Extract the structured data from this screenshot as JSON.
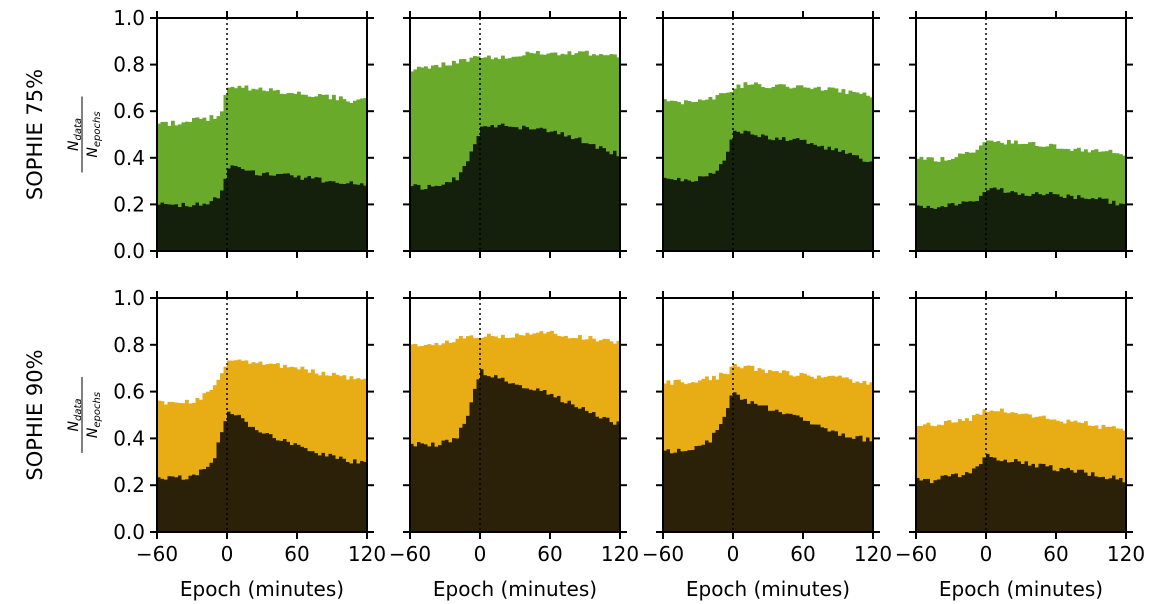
{
  "chart_data": {
    "type": "bar",
    "layout": {
      "rows": 2,
      "cols": 4
    },
    "xlabel": "Epoch (minutes)",
    "xlim": [
      -60,
      120
    ],
    "ylim": [
      0,
      1.0
    ],
    "xticks": [
      -60,
      0,
      60,
      120
    ],
    "xtick_labels": [
      "−60",
      "0",
      "60",
      "120"
    ],
    "yticks": [
      0,
      0.2,
      0.4,
      0.6,
      0.8,
      1.0
    ],
    "ytick_labels": [
      "0.0",
      "0.2",
      "0.4",
      "0.6",
      "0.8",
      "1.0"
    ],
    "ylabel": {
      "numerator": "N",
      "numerator_sub": "data",
      "denominator": "N",
      "denominator_sub": "epochs"
    },
    "epoch_marker": 0,
    "bin_minutes": 3,
    "rows": [
      {
        "label": "SOPHIE 75%",
        "colors": {
          "total": "#6aaa2a",
          "inner": "#14200b"
        },
        "panels": [
          {
            "total_knots": [
              [
                -60,
                0.54
              ],
              [
                -45,
                0.55
              ],
              [
                -30,
                0.56
              ],
              [
                -15,
                0.57
              ],
              [
                -6,
                0.58
              ],
              [
                -3,
                0.62
              ],
              [
                0,
                0.7
              ],
              [
                15,
                0.7
              ],
              [
                30,
                0.69
              ],
              [
                60,
                0.68
              ],
              [
                90,
                0.66
              ],
              [
                110,
                0.64
              ],
              [
                120,
                0.65
              ]
            ],
            "inner_knots": [
              [
                -60,
                0.21
              ],
              [
                -45,
                0.19
              ],
              [
                -30,
                0.2
              ],
              [
                -15,
                0.21
              ],
              [
                -6,
                0.23
              ],
              [
                -3,
                0.28
              ],
              [
                0,
                0.36
              ],
              [
                6,
                0.38
              ],
              [
                15,
                0.34
              ],
              [
                30,
                0.33
              ],
              [
                60,
                0.32
              ],
              [
                90,
                0.3
              ],
              [
                120,
                0.28
              ]
            ]
          },
          {
            "total_knots": [
              [
                -60,
                0.77
              ],
              [
                -45,
                0.79
              ],
              [
                -30,
                0.8
              ],
              [
                -15,
                0.82
              ],
              [
                0,
                0.83
              ],
              [
                30,
                0.84
              ],
              [
                60,
                0.85
              ],
              [
                90,
                0.85
              ],
              [
                120,
                0.83
              ]
            ],
            "inner_knots": [
              [
                -60,
                0.28
              ],
              [
                -45,
                0.27
              ],
              [
                -30,
                0.29
              ],
              [
                -20,
                0.31
              ],
              [
                -10,
                0.4
              ],
              [
                -3,
                0.48
              ],
              [
                0,
                0.53
              ],
              [
                15,
                0.54
              ],
              [
                30,
                0.53
              ],
              [
                60,
                0.52
              ],
              [
                90,
                0.47
              ],
              [
                120,
                0.41
              ]
            ]
          },
          {
            "total_knots": [
              [
                -60,
                0.66
              ],
              [
                -45,
                0.64
              ],
              [
                -30,
                0.65
              ],
              [
                -15,
                0.66
              ],
              [
                -5,
                0.68
              ],
              [
                0,
                0.7
              ],
              [
                15,
                0.72
              ],
              [
                30,
                0.71
              ],
              [
                60,
                0.7
              ],
              [
                90,
                0.69
              ],
              [
                120,
                0.67
              ]
            ],
            "inner_knots": [
              [
                -60,
                0.32
              ],
              [
                -45,
                0.3
              ],
              [
                -30,
                0.31
              ],
              [
                -15,
                0.34
              ],
              [
                -8,
                0.38
              ],
              [
                -3,
                0.45
              ],
              [
                0,
                0.52
              ],
              [
                15,
                0.5
              ],
              [
                30,
                0.49
              ],
              [
                60,
                0.47
              ],
              [
                90,
                0.43
              ],
              [
                120,
                0.38
              ]
            ]
          },
          {
            "total_knots": [
              [
                -60,
                0.4
              ],
              [
                -45,
                0.39
              ],
              [
                -30,
                0.4
              ],
              [
                -15,
                0.42
              ],
              [
                -6,
                0.44
              ],
              [
                0,
                0.48
              ],
              [
                15,
                0.47
              ],
              [
                30,
                0.46
              ],
              [
                60,
                0.45
              ],
              [
                90,
                0.43
              ],
              [
                120,
                0.42
              ]
            ],
            "inner_knots": [
              [
                -60,
                0.2
              ],
              [
                -45,
                0.19
              ],
              [
                -30,
                0.2
              ],
              [
                -15,
                0.21
              ],
              [
                -6,
                0.23
              ],
              [
                0,
                0.27
              ],
              [
                15,
                0.26
              ],
              [
                30,
                0.25
              ],
              [
                60,
                0.24
              ],
              [
                90,
                0.23
              ],
              [
                120,
                0.2
              ]
            ]
          }
        ]
      },
      {
        "label": "SOPHIE 90%",
        "colors": {
          "total": "#e8ac15",
          "inner": "#2a2108"
        },
        "panels": [
          {
            "total_knots": [
              [
                -60,
                0.55
              ],
              [
                -45,
                0.56
              ],
              [
                -30,
                0.56
              ],
              [
                -20,
                0.58
              ],
              [
                -12,
                0.62
              ],
              [
                -6,
                0.67
              ],
              [
                0,
                0.73
              ],
              [
                15,
                0.73
              ],
              [
                30,
                0.72
              ],
              [
                60,
                0.7
              ],
              [
                90,
                0.67
              ],
              [
                120,
                0.65
              ]
            ],
            "inner_knots": [
              [
                -60,
                0.24
              ],
              [
                -45,
                0.23
              ],
              [
                -30,
                0.24
              ],
              [
                -20,
                0.26
              ],
              [
                -12,
                0.3
              ],
              [
                -6,
                0.4
              ],
              [
                0,
                0.51
              ],
              [
                8,
                0.5
              ],
              [
                20,
                0.45
              ],
              [
                30,
                0.42
              ],
              [
                60,
                0.37
              ],
              [
                90,
                0.32
              ],
              [
                120,
                0.29
              ]
            ]
          },
          {
            "total_knots": [
              [
                -60,
                0.79
              ],
              [
                -45,
                0.8
              ],
              [
                -30,
                0.81
              ],
              [
                -15,
                0.83
              ],
              [
                0,
                0.84
              ],
              [
                30,
                0.84
              ],
              [
                60,
                0.85
              ],
              [
                90,
                0.83
              ],
              [
                120,
                0.81
              ]
            ],
            "inner_knots": [
              [
                -60,
                0.38
              ],
              [
                -45,
                0.37
              ],
              [
                -30,
                0.38
              ],
              [
                -20,
                0.4
              ],
              [
                -12,
                0.48
              ],
              [
                -5,
                0.6
              ],
              [
                0,
                0.69
              ],
              [
                15,
                0.66
              ],
              [
                30,
                0.63
              ],
              [
                60,
                0.59
              ],
              [
                90,
                0.52
              ],
              [
                120,
                0.46
              ]
            ]
          },
          {
            "total_knots": [
              [
                -60,
                0.64
              ],
              [
                -45,
                0.64
              ],
              [
                -30,
                0.65
              ],
              [
                -15,
                0.66
              ],
              [
                -5,
                0.68
              ],
              [
                0,
                0.71
              ],
              [
                15,
                0.7
              ],
              [
                30,
                0.69
              ],
              [
                60,
                0.67
              ],
              [
                90,
                0.66
              ],
              [
                120,
                0.63
              ]
            ],
            "inner_knots": [
              [
                -60,
                0.34
              ],
              [
                -45,
                0.35
              ],
              [
                -30,
                0.36
              ],
              [
                -20,
                0.39
              ],
              [
                -10,
                0.46
              ],
              [
                -4,
                0.54
              ],
              [
                0,
                0.6
              ],
              [
                15,
                0.55
              ],
              [
                30,
                0.53
              ],
              [
                60,
                0.48
              ],
              [
                90,
                0.42
              ],
              [
                120,
                0.39
              ]
            ]
          },
          {
            "total_knots": [
              [
                -60,
                0.45
              ],
              [
                -45,
                0.46
              ],
              [
                -30,
                0.47
              ],
              [
                -15,
                0.48
              ],
              [
                -5,
                0.5
              ],
              [
                0,
                0.52
              ],
              [
                15,
                0.52
              ],
              [
                30,
                0.51
              ],
              [
                60,
                0.48
              ],
              [
                90,
                0.46
              ],
              [
                120,
                0.43
              ]
            ],
            "inner_knots": [
              [
                -60,
                0.22
              ],
              [
                -45,
                0.22
              ],
              [
                -30,
                0.24
              ],
              [
                -15,
                0.25
              ],
              [
                -5,
                0.28
              ],
              [
                0,
                0.33
              ],
              [
                15,
                0.31
              ],
              [
                30,
                0.3
              ],
              [
                60,
                0.27
              ],
              [
                90,
                0.25
              ],
              [
                120,
                0.22
              ]
            ]
          }
        ]
      }
    ]
  }
}
